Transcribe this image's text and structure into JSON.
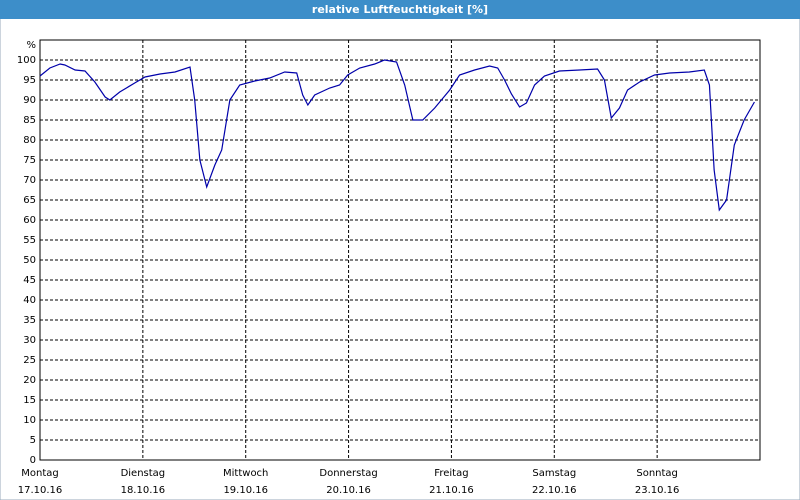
{
  "chart_data": {
    "type": "line",
    "title": "relative Luftfeuchtigkeit [%]",
    "y_label": "%",
    "x": [
      0,
      2.3,
      4.7,
      5.8,
      8.2,
      10.5,
      12.8,
      15.2,
      16.3,
      18.6,
      22.1,
      24.5,
      28,
      31.5,
      35,
      36.1,
      37.3,
      38.9,
      40.8,
      42.4,
      44.3,
      46.6,
      50.1,
      53.6,
      57.1,
      59.9,
      61.3,
      62.5,
      64.1,
      67.6,
      69.9,
      71.8,
      74.6,
      78.1,
      80.4,
      83.2,
      85.1,
      87,
      89.3,
      92.1,
      95.6,
      97.9,
      101.4,
      104.9,
      106.8,
      108.4,
      110,
      111.9,
      113.5,
      115.4,
      117.7,
      121.2,
      125.9,
      130.1,
      131.7,
      133.3,
      135.2,
      137.1,
      139.9,
      143.4,
      146.9,
      151.5,
      155,
      156.2,
      157.3,
      158.5,
      160.2,
      162,
      164.3,
      166.7
    ],
    "values": [
      96,
      98,
      99,
      98.75,
      97.5,
      97.25,
      94.5,
      90.75,
      90,
      92,
      94.25,
      95.75,
      96.5,
      97,
      98.25,
      90,
      75,
      68.25,
      73.75,
      77.5,
      90,
      93.75,
      94.75,
      95.5,
      97,
      96.75,
      91.25,
      88.75,
      91.25,
      93,
      93.75,
      96.25,
      98,
      99,
      100,
      99.5,
      93.75,
      85,
      85,
      88,
      92.5,
      96.25,
      97.5,
      98.5,
      98,
      95,
      91.5,
      88.25,
      89.25,
      93.75,
      96,
      97.25,
      97.5,
      97.75,
      95,
      85.5,
      88,
      92.5,
      94.5,
      96.25,
      96.75,
      97,
      97.5,
      93.75,
      72.5,
      62.5,
      65,
      78.75,
      85,
      89.5
    ],
    "color": "#0000aa",
    "xlim": [
      0,
      168
    ],
    "xticks": [
      {
        "value": 0,
        "label": "Montag"
      },
      {
        "value": 24,
        "label": "Dienstag"
      },
      {
        "value": 48,
        "label": "Mittwoch"
      },
      {
        "value": 72,
        "label": "Donnerstag"
      },
      {
        "value": 96,
        "label": "Freitag"
      },
      {
        "value": 120,
        "label": "Samstag"
      },
      {
        "value": 144,
        "label": "Sonntag"
      }
    ],
    "xtick_dates": [
      "17.10.16",
      "18.10.16",
      "19.10.16",
      "20.10.16",
      "21.10.16",
      "22.10.16",
      "23.10.16"
    ],
    "ylim": [
      0,
      105
    ],
    "yticks": [
      0,
      5,
      10,
      15,
      20,
      25,
      30,
      35,
      40,
      45,
      50,
      55,
      60,
      65,
      70,
      75,
      80,
      85,
      90,
      95,
      100
    ],
    "grid": true
  }
}
